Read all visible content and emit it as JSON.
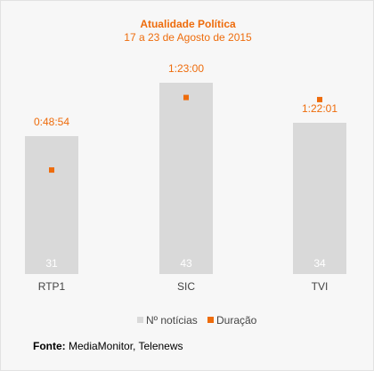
{
  "colors": {
    "accent": "#ee6c0c",
    "bar": "#d9d9d9",
    "bar_text": "#ffffff",
    "axis_text": "#444444"
  },
  "source": {
    "label": "Fonte:",
    "text": "MediaMonitor, Telenews"
  },
  "chart_data": {
    "type": "bar",
    "title": "Atualidade Política",
    "subtitle": "17 a 23 de Agosto de 2015",
    "categories": [
      "RTP1",
      "SIC",
      "TVI"
    ],
    "series": [
      {
        "name": "Nº notícias",
        "type": "bar",
        "values": [
          31,
          43,
          34
        ],
        "data_labels": [
          "31",
          "43",
          "34"
        ]
      },
      {
        "name": "Duração",
        "type": "scatter",
        "values_seconds": [
          2934,
          4980,
          4921
        ],
        "data_labels": [
          "0:48:54",
          "1:23:00",
          "1:22:01"
        ]
      }
    ],
    "ylim_bars": [
      0,
      51
    ],
    "ylim_duration_seconds": [
      0,
      6400
    ],
    "grid": false,
    "legend": "bottom"
  }
}
